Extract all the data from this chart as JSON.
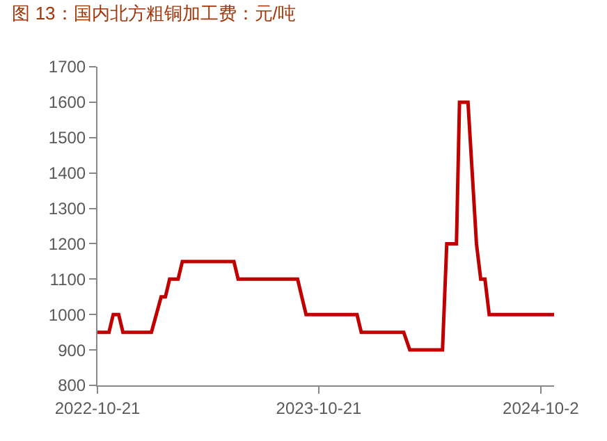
{
  "chart_data": {
    "type": "line",
    "title": "图 13：国内北方粗铜加工费：元/吨",
    "x": [
      "2022-10-21",
      "2022-11-09",
      "2022-11-16",
      "2022-11-25",
      "2022-12-02",
      "2023-01-18",
      "2023-02-03",
      "2023-02-10",
      "2023-02-17",
      "2023-03-03",
      "2023-03-10",
      "2023-06-03",
      "2023-06-10",
      "2023-09-16",
      "2023-09-30",
      "2023-12-23",
      "2023-12-30",
      "2024-03-09",
      "2024-03-19",
      "2024-05-12",
      "2024-05-19",
      "2024-06-04",
      "2024-06-09",
      "2024-06-23",
      "2024-07-07",
      "2024-07-14",
      "2024-07-21",
      "2024-07-28",
      "2024-11-12"
    ],
    "series": [
      {
        "color": "#c00000",
        "values": [
          950,
          950,
          1000,
          1000,
          950,
          950,
          1050,
          1050,
          1100,
          1100,
          1150,
          1150,
          1100,
          1100,
          1000,
          1000,
          950,
          950,
          900,
          900,
          1200,
          1200,
          1600,
          1600,
          1200,
          1100,
          1100,
          1000,
          1000
        ]
      }
    ],
    "xlim": [
      "2022-10-21",
      "2024-11-12"
    ],
    "xticks": [
      {
        "value": "2022-10-21",
        "label": "2022-10-21"
      },
      {
        "value": "2023-10-21",
        "label": "2023-10-21"
      },
      {
        "value": "2024-10-21",
        "label": "2024-10-2"
      }
    ],
    "ylim": [
      800,
      1700
    ],
    "yticks": [
      800,
      900,
      1000,
      1100,
      1200,
      1300,
      1400,
      1500,
      1600,
      1700
    ],
    "legend": false,
    "marker": "none",
    "line_style": "solid"
  }
}
